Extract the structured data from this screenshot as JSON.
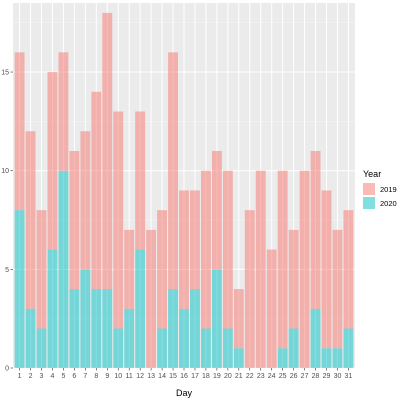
{
  "chart_data": {
    "type": "bar",
    "stacked": true,
    "title": "",
    "xlabel": "Day",
    "ylabel": "",
    "ylim": [
      0,
      18.5
    ],
    "yticks": [
      0,
      5,
      10,
      15
    ],
    "categories": [
      "1",
      "2",
      "3",
      "4",
      "5",
      "6",
      "7",
      "8",
      "9",
      "10",
      "11",
      "12",
      "13",
      "14",
      "15",
      "16",
      "17",
      "18",
      "19",
      "20",
      "21",
      "22",
      "23",
      "24",
      "25",
      "26",
      "27",
      "28",
      "29",
      "30",
      "31"
    ],
    "series": [
      {
        "name": "2019",
        "color": "#f8766d",
        "values": [
          8,
          9,
          6,
          9,
          6,
          7,
          7,
          10,
          14,
          11,
          4,
          7,
          7,
          6,
          12,
          6,
          5,
          8,
          6,
          8,
          3,
          8,
          10,
          6,
          9,
          5,
          10,
          8,
          8,
          6,
          6
        ]
      },
      {
        "name": "2020",
        "color": "#00bfc4",
        "values": [
          8,
          3,
          2,
          6,
          10,
          4,
          5,
          4,
          4,
          2,
          3,
          6,
          0,
          2,
          4,
          3,
          4,
          2,
          5,
          2,
          1,
          0,
          0,
          0,
          1,
          2,
          0,
          3,
          1,
          1,
          2
        ]
      }
    ],
    "legend": {
      "title": "Year",
      "position": "right"
    },
    "grid": true
  }
}
